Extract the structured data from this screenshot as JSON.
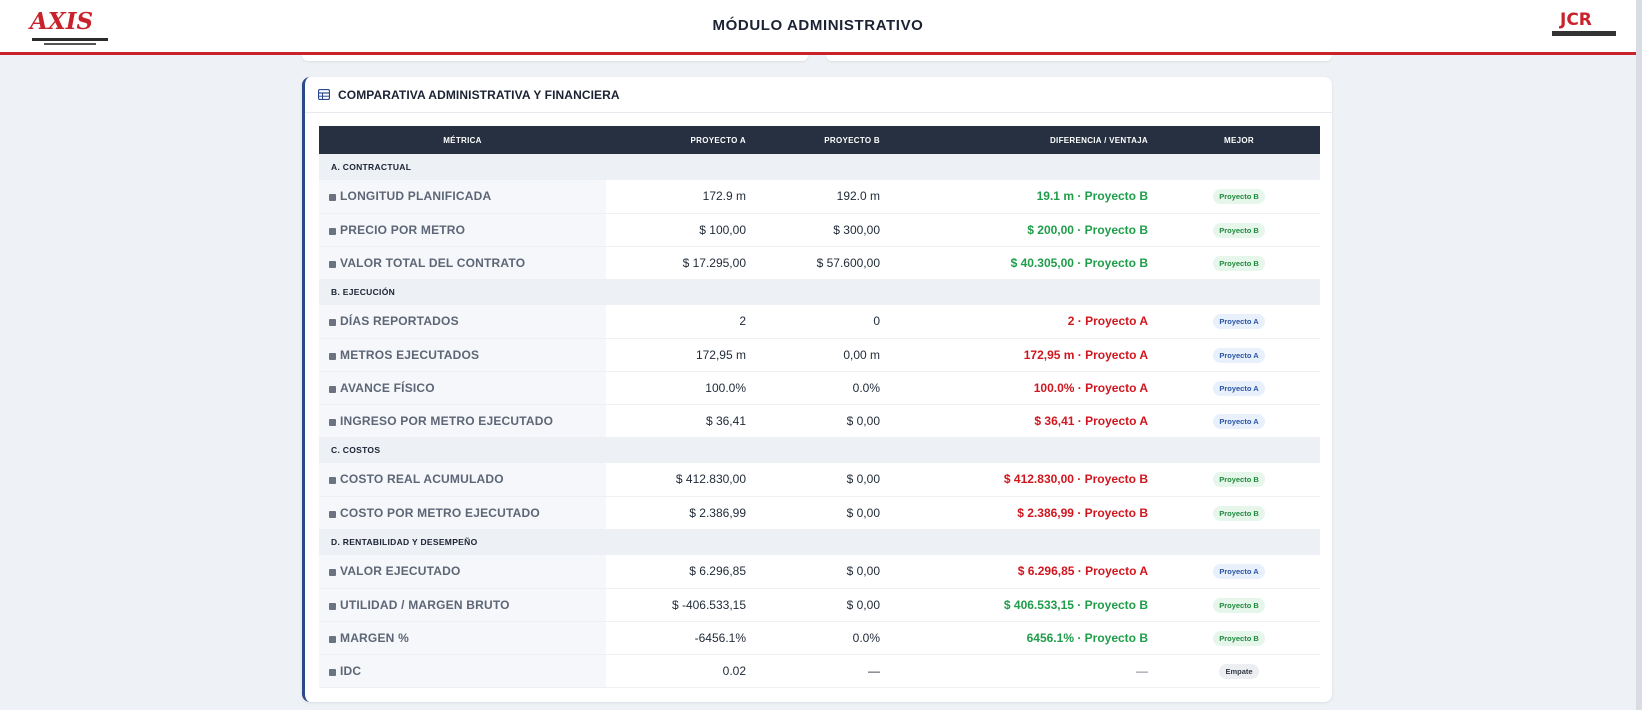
{
  "header": {
    "title": "MÓDULO ADMINISTRATIVO",
    "logo_left": "AXIS",
    "logo_right": "JCR"
  },
  "card": {
    "title": "COMPARATIVA ADMINISTRATIVA Y FINANCIERA",
    "icon": "table-icon"
  },
  "table": {
    "columns": [
      "MÉTRICA",
      "PROYECTO A",
      "PROYECTO B",
      "DIFERENCIA / VENTAJA",
      "MEJOR"
    ],
    "sections": [
      {
        "title": "A. CONTRACTUAL",
        "rows": [
          {
            "metric": "LONGITUD PLANIFICADA",
            "icon": "ruler-icon",
            "a": "172.9 m",
            "b": "192.0 m",
            "diff": "19.1 m · Proyecto B",
            "diff_color": "green",
            "best": "Proyecto B",
            "best_color": "green"
          },
          {
            "metric": "PRECIO POR METRO",
            "icon": "tag-icon",
            "a": "$ 100,00",
            "b": "$ 300,00",
            "diff": "$ 200,00 · Proyecto B",
            "diff_color": "green",
            "best": "Proyecto B",
            "best_color": "green"
          },
          {
            "metric": "VALOR TOTAL DEL CONTRATO",
            "icon": "document-icon",
            "a": "$ 17.295,00",
            "b": "$ 57.600,00",
            "diff": "$ 40.305,00 · Proyecto B",
            "diff_color": "green",
            "best": "Proyecto B",
            "best_color": "green"
          }
        ]
      },
      {
        "title": "B. EJECUCIÓN",
        "rows": [
          {
            "metric": "DÍAS REPORTADOS",
            "icon": "calendar-icon",
            "a": "2",
            "b": "0",
            "diff": "2 · Proyecto A",
            "diff_color": "red",
            "best": "Proyecto A",
            "best_color": "blue"
          },
          {
            "metric": "METROS EJECUTADOS",
            "icon": "road-icon",
            "a": "172,95 m",
            "b": "0,00 m",
            "diff": "172,95 m · Proyecto A",
            "diff_color": "red",
            "best": "Proyecto A",
            "best_color": "blue"
          },
          {
            "metric": "AVANCE FÍSICO",
            "icon": "helmet-icon",
            "a": "100.0%",
            "b": "0.0%",
            "diff": "100.0% · Proyecto A",
            "diff_color": "red",
            "best": "Proyecto A",
            "best_color": "blue"
          },
          {
            "metric": "INGRESO POR METRO EJECUTADO",
            "icon": "hand-coin-icon",
            "a": "$ 36,41",
            "b": "$ 0,00",
            "diff": "$ 36,41 · Proyecto A",
            "diff_color": "red",
            "best": "Proyecto A",
            "best_color": "blue"
          }
        ]
      },
      {
        "title": "C. COSTOS",
        "rows": [
          {
            "metric": "COSTO REAL ACUMULADO",
            "icon": "receipt-icon",
            "a": "$ 412.830,00",
            "b": "$ 0,00",
            "diff": "$ 412.830,00 · Proyecto B",
            "diff_color": "red",
            "best": "Proyecto B",
            "best_color": "green"
          },
          {
            "metric": "COSTO POR METRO EJECUTADO",
            "icon": "coins-icon",
            "a": "$ 2.386,99",
            "b": "$ 0,00",
            "diff": "$ 2.386,99 · Proyecto B",
            "diff_color": "red",
            "best": "Proyecto B",
            "best_color": "green"
          }
        ]
      },
      {
        "title": "D. RENTABILIDAD Y DESEMPEÑO",
        "rows": [
          {
            "metric": "VALOR EJECUTADO",
            "icon": "dollar-icon",
            "a": "$ 6.296,85",
            "b": "$ 0,00",
            "diff": "$ 6.296,85 · Proyecto A",
            "diff_color": "red",
            "best": "Proyecto A",
            "best_color": "blue"
          },
          {
            "metric": "UTILIDAD / MARGEN BRUTO",
            "icon": "money-icon",
            "a": "$ -406.533,15",
            "b": "$ 0,00",
            "diff": "$ 406.533,15 · Proyecto B",
            "diff_color": "green",
            "best": "Proyecto B",
            "best_color": "green"
          },
          {
            "metric": "MARGEN %",
            "icon": "percent-icon",
            "a": "-6456.1%",
            "b": "0.0%",
            "diff": "6456.1% · Proyecto B",
            "diff_color": "green",
            "best": "Proyecto B",
            "best_color": "green"
          },
          {
            "metric": "IDC",
            "icon": "gauge-icon",
            "a": "0.02",
            "b": "—",
            "diff": "—",
            "diff_color": "gray",
            "best": "Empate",
            "best_color": "gray"
          }
        ]
      }
    ]
  },
  "colors": {
    "accent_red": "#c8232c",
    "header_dark": "#263040",
    "positive_green": "#1f9d4a",
    "negative_red": "#d0161f",
    "badge_blue": "#2a55a6"
  }
}
